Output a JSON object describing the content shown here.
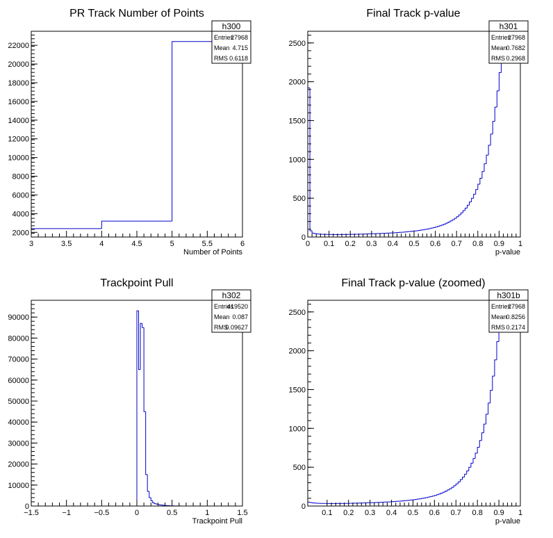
{
  "chart_data": [
    {
      "type": "bar",
      "title": "PR Track Number of Points",
      "xlabel": "Number of Points",
      "ylabel": "",
      "xlim": [
        3,
        6
      ],
      "ylim": [
        1500,
        23500
      ],
      "x_ticks": [
        3,
        3.5,
        4,
        4.5,
        5,
        5.5,
        6
      ],
      "x_tick_labels": [
        "3",
        "3.5",
        "4",
        "4.5",
        "5",
        "5.5",
        "6"
      ],
      "y_ticks": [
        2000,
        4000,
        6000,
        8000,
        10000,
        12000,
        14000,
        16000,
        18000,
        20000,
        22000
      ],
      "y_tick_labels": [
        "2000",
        "4000",
        "6000",
        "8000",
        "10000",
        "12000",
        "14000",
        "16000",
        "18000",
        "20000",
        "22000"
      ],
      "bin_edges": [
        3,
        4,
        5,
        6
      ],
      "values": [
        2400,
        3200,
        22400
      ],
      "stats": {
        "name": "h300",
        "rows": [
          [
            "Entries",
            "27968"
          ],
          [
            "Mean",
            "4.715"
          ],
          [
            "RMS",
            "0.6118"
          ]
        ]
      }
    },
    {
      "type": "bar",
      "title": "Final Track p-value",
      "xlabel": "p-value",
      "ylabel": "",
      "xlim": [
        0,
        1
      ],
      "ylim": [
        0,
        2650
      ],
      "x_ticks": [
        0,
        0.1,
        0.2,
        0.3,
        0.4,
        0.5,
        0.6,
        0.7,
        0.8,
        0.9,
        1
      ],
      "x_tick_labels": [
        "0",
        "0.1",
        "0.2",
        "0.3",
        "0.4",
        "0.5",
        "0.6",
        "0.7",
        "0.8",
        "0.9",
        "1"
      ],
      "y_ticks": [
        0,
        500,
        1000,
        1500,
        2000,
        2500
      ],
      "y_tick_labels": [
        "0",
        "500",
        "1000",
        "1500",
        "2000",
        "2500"
      ],
      "bin_edges_range": [
        0,
        1
      ],
      "values": [
        1920,
        80,
        50,
        45,
        40,
        38,
        36,
        35,
        34,
        33,
        33,
        32,
        32,
        32,
        32,
        32,
        33,
        33,
        33,
        34,
        34,
        35,
        35,
        36,
        37,
        37,
        38,
        39,
        40,
        41,
        42,
        43,
        44,
        45,
        46,
        47,
        48,
        50,
        51,
        53,
        54,
        56,
        58,
        60,
        62,
        64,
        66,
        69,
        72,
        75,
        78,
        81,
        85,
        89,
        93,
        98,
        103,
        109,
        115,
        122,
        129,
        137,
        146,
        156,
        167,
        179,
        192,
        207,
        223,
        241,
        262,
        285,
        311,
        340,
        373,
        410,
        452,
        499,
        552,
        612,
        680,
        757,
        844,
        943,
        1055,
        1182,
        1326,
        1489,
        1673,
        1882,
        2117,
        2240,
        2240,
        2240,
        2240,
        2240,
        2240,
        2240,
        2240,
        2240
      ],
      "stats": {
        "name": "h301",
        "rows": [
          [
            "Entries",
            "27968"
          ],
          [
            "Mean",
            "0.7682"
          ],
          [
            "RMS",
            "0.2968"
          ]
        ]
      }
    },
    {
      "type": "bar",
      "title": "Trackpoint Pull",
      "xlabel": "Trackpoint Pull",
      "ylabel": "",
      "xlim": [
        -1.5,
        1.5
      ],
      "ylim": [
        0,
        98000
      ],
      "x_ticks": [
        -1.5,
        -1,
        -0.5,
        0,
        0.5,
        1,
        1.5
      ],
      "x_tick_labels": [
        "−1.5",
        "−1",
        "−0.5",
        "0",
        "0.5",
        "1",
        "1.5"
      ],
      "y_ticks": [
        0,
        10000,
        20000,
        30000,
        40000,
        50000,
        60000,
        70000,
        80000,
        90000
      ],
      "y_tick_labels": [
        "0",
        "10000",
        "20000",
        "30000",
        "40000",
        "50000",
        "60000",
        "70000",
        "80000",
        "90000"
      ],
      "bin_edges_range": [
        0,
        0.7
      ],
      "values": [
        93000,
        65000,
        87000,
        85000,
        45000,
        15000,
        7000,
        4000,
        2500,
        1500,
        1100,
        900,
        700,
        550,
        450,
        350,
        250,
        200,
        150,
        100,
        80,
        60,
        50,
        40,
        30,
        20,
        15,
        10
      ],
      "stats": {
        "name": "h302",
        "rows": [
          [
            "Entries",
            "419520"
          ],
          [
            "Mean",
            "0.087"
          ],
          [
            "RMS",
            "0.09627"
          ]
        ]
      }
    },
    {
      "type": "bar",
      "title": "Final Track p-value (zoomed)",
      "xlabel": "p-value",
      "ylabel": "",
      "xlim": [
        0.01,
        1
      ],
      "ylim": [
        0,
        2650
      ],
      "x_ticks": [
        0.1,
        0.2,
        0.3,
        0.4,
        0.5,
        0.6,
        0.7,
        0.8,
        0.9,
        1
      ],
      "x_tick_labels": [
        "0.1",
        "0.2",
        "0.3",
        "0.4",
        "0.5",
        "0.6",
        "0.7",
        "0.8",
        "0.9",
        "1"
      ],
      "y_ticks": [
        0,
        500,
        1000,
        1500,
        2000,
        2500
      ],
      "y_tick_labels": [
        "0",
        "500",
        "1000",
        "1500",
        "2000",
        "2500"
      ],
      "bin_edges_range": [
        0.01,
        1
      ],
      "values": [
        50,
        45,
        40,
        38,
        36,
        35,
        34,
        33,
        33,
        32,
        32,
        32,
        32,
        32,
        33,
        33,
        33,
        34,
        34,
        35,
        35,
        36,
        37,
        37,
        38,
        39,
        40,
        41,
        42,
        43,
        44,
        45,
        46,
        47,
        48,
        50,
        51,
        53,
        54,
        56,
        58,
        60,
        62,
        64,
        66,
        69,
        72,
        75,
        78,
        81,
        85,
        89,
        93,
        98,
        103,
        109,
        115,
        122,
        129,
        137,
        146,
        156,
        167,
        179,
        192,
        207,
        223,
        241,
        262,
        285,
        311,
        340,
        373,
        410,
        452,
        499,
        552,
        612,
        680,
        757,
        844,
        943,
        1055,
        1182,
        1326,
        1489,
        1673,
        1882,
        2117,
        2240,
        2240,
        2240,
        2240,
        2240,
        2240,
        2240,
        2240,
        2240,
        2240
      ],
      "stats": {
        "name": "h301b",
        "rows": [
          [
            "Entries",
            "27968"
          ],
          [
            "Mean",
            "0.8256"
          ],
          [
            "RMS",
            "0.2174"
          ]
        ]
      }
    }
  ],
  "colors": {
    "histogram_line": "#0000cc",
    "frame": "#000000",
    "background": "#ffffff"
  }
}
